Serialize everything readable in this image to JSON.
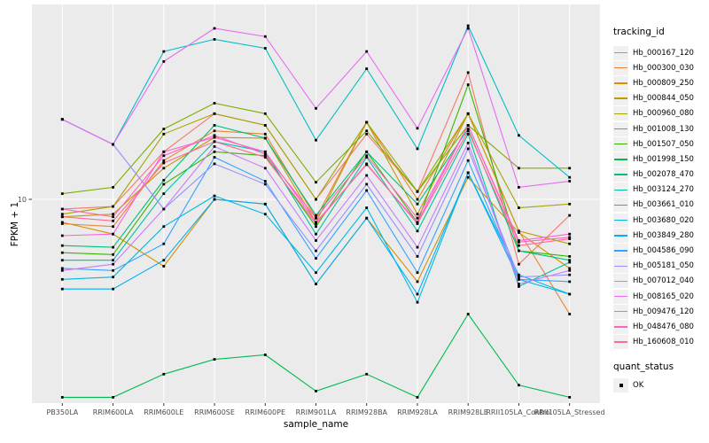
{
  "chart_data": {
    "type": "line",
    "title": "",
    "xlabel": "sample_name",
    "ylabel": "FPKM + 1",
    "y_scale": "log10",
    "y_ticks": [
      "10"
    ],
    "grid": true,
    "legend_position": "right",
    "legend_title": "tracking_id",
    "quant_status": {
      "title": "quant_status",
      "label": "OK",
      "marker": "black-filled-square"
    },
    "panel_background": "#EBEBEB",
    "grid_color": "#FFFFFF",
    "tick_text_color": "#4D4D4D",
    "point_color": "#000000",
    "categories": [
      "PB350LA",
      "RRIM600LA",
      "RRIM600LE",
      "RRIM600SE",
      "RRIM600PE",
      "RRIM901LA",
      "RRIM928BA",
      "RRIM928LA",
      "RRIM928LE",
      "RRII105LA_Control",
      "RRII105LA_Stressed"
    ],
    "series": [
      {
        "name": "Hb_000167_120",
        "color": "#F8766D",
        "values": [
          9.2,
          9.4,
          15.1,
          21,
          19,
          10,
          17.6,
          10.7,
          30,
          5.7,
          8.7
        ]
      },
      {
        "name": "Hb_000300_030",
        "color": "#EB8335",
        "values": [
          8.1,
          7.9,
          14,
          18.1,
          17.6,
          8.5,
          19.5,
          10,
          21,
          7.6,
          3.7
        ]
      },
      {
        "name": "Hb_000809_250",
        "color": "#D89000",
        "values": [
          8.2,
          7.4,
          5.6,
          10,
          9.6,
          4.8,
          8.5,
          4.9,
          12.1,
          7.5,
          5.5
        ]
      },
      {
        "name": "Hb_000844_050",
        "color": "#C09B00",
        "values": [
          8.6,
          8.8,
          13.1,
          17.1,
          17,
          8.2,
          19.5,
          8.8,
          21,
          7.6,
          6.8
        ]
      },
      {
        "name": "Hb_000960_080",
        "color": "#A3A500",
        "values": [
          8.8,
          9.4,
          17.6,
          21,
          19,
          10,
          19.5,
          10.7,
          21,
          9.3,
          9.6
        ]
      },
      {
        "name": "Hb_001008_130",
        "color": "#7CAE00",
        "values": [
          10.5,
          11.1,
          18.4,
          23,
          21,
          11.6,
          18.1,
          10.7,
          19,
          13.1,
          13.1
        ]
      },
      {
        "name": "Hb_001507_050",
        "color": "#39B600",
        "values": [
          6.3,
          6.2,
          11.4,
          15.1,
          14.6,
          7.9,
          15.1,
          8.2,
          27,
          6.4,
          6.1
        ]
      },
      {
        "name": "Hb_001998_150",
        "color": "#00BB4E",
        "values": [
          1.8,
          1.8,
          2.2,
          2.5,
          2.6,
          1.9,
          2.2,
          1.8,
          3.7,
          2.0,
          1.8
        ]
      },
      {
        "name": "Hb_002078_470",
        "color": "#00BF7D",
        "values": [
          6.7,
          6.6,
          11.8,
          19,
          17,
          8.7,
          15.1,
          9.6,
          18.4,
          6.4,
          5.9
        ]
      },
      {
        "name": "Hb_003124_270",
        "color": "#00C1A3",
        "values": [
          5.9,
          5.9,
          10.5,
          16.5,
          15.1,
          7.4,
          14.4,
          7.6,
          17.6,
          4.7,
          5.8
        ]
      },
      {
        "name": "Hb_003661_010",
        "color": "#00BFC4",
        "values": [
          20,
          16.1,
          36,
          40,
          37,
          16.7,
          31,
          15.5,
          45,
          17.4,
          12.1
        ]
      },
      {
        "name": "Hb_003680_020",
        "color": "#00BAE0",
        "values": [
          5.0,
          5.1,
          7.9,
          10.3,
          8.8,
          5.3,
          9.3,
          4.1,
          12.6,
          5.2,
          4.4
        ]
      },
      {
        "name": "Hb_003849_280",
        "color": "#00B0F6",
        "values": [
          4.6,
          4.6,
          5.9,
          10,
          9.6,
          4.8,
          8.5,
          4.4,
          12.6,
          5.0,
          4.4
        ]
      },
      {
        "name": "Hb_004586_090",
        "color": "#35A2FF",
        "values": [
          5.5,
          5.4,
          6.8,
          14.4,
          11.7,
          6.0,
          10.8,
          5.3,
          14,
          5.0,
          4.9
        ]
      },
      {
        "name": "Hb_005181_050",
        "color": "#9590FF",
        "values": [
          20,
          16.1,
          9.2,
          13.6,
          11.4,
          6.4,
          11.4,
          6.1,
          15.5,
          5.1,
          5.2
        ]
      },
      {
        "name": "Hb_007012_040",
        "color": "#C77CFF",
        "values": [
          5.4,
          5.7,
          9.2,
          15.8,
          13.1,
          7.0,
          12.3,
          6.6,
          16.3,
          4.8,
          5.4
        ]
      },
      {
        "name": "Hb_008165_020",
        "color": "#E76BF3",
        "values": [
          20,
          16.1,
          33,
          44,
          41,
          22,
          36,
          18.5,
          44,
          11.1,
          11.7
        ]
      },
      {
        "name": "Hb_009476_120",
        "color": "#FA62DB",
        "values": [
          7.3,
          7.4,
          15.1,
          17.1,
          15.1,
          8.2,
          13.5,
          8.2,
          19,
          7.0,
          7.4
        ]
      },
      {
        "name": "Hb_048476_080",
        "color": "#FF62BC",
        "values": [
          9.2,
          8.6,
          14.6,
          17.4,
          14.8,
          8.5,
          14.6,
          8.5,
          19,
          6.9,
          7.2
        ]
      },
      {
        "name": "Hb_160608_010",
        "color": "#FF6A98",
        "values": [
          8.6,
          8.3,
          13.7,
          16.5,
          14.4,
          8.1,
          13.6,
          8.1,
          18.1,
          6.7,
          7.1
        ]
      }
    ]
  }
}
